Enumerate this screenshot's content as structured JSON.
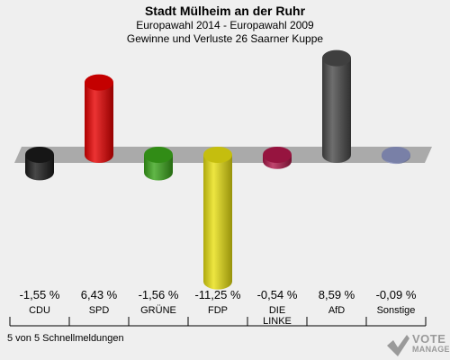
{
  "header": {
    "title": "Stadt Mülheim an der Ruhr",
    "subtitle1": "Europawahl 2014 - Europawahl 2009",
    "subtitle2": "Gewinne und Verluste 26 Saarner Kuppe"
  },
  "chart_data": {
    "type": "bar",
    "categories": [
      "CDU",
      "SPD",
      "GRÜNE",
      "FDP",
      "DIE LINKE",
      "AfD",
      "Sonstige"
    ],
    "category_lines": [
      [
        "CDU"
      ],
      [
        "SPD"
      ],
      [
        "GRÜNE"
      ],
      [
        "FDP"
      ],
      [
        "DIE",
        "LINKE"
      ],
      [
        "AfD"
      ],
      [
        "Sonstige"
      ]
    ],
    "values": [
      -1.55,
      6.43,
      -1.56,
      -11.25,
      -0.54,
      8.59,
      -0.09
    ],
    "value_labels": [
      "-1,55 %",
      "6,43 %",
      "-1,56 %",
      "-11,25 %",
      "-0,54 %",
      "8,59 %",
      "-0,09 %"
    ],
    "colors": [
      "#1a1a1a",
      "#e60000",
      "#3aa51a",
      "#e8e011",
      "#b0184a",
      "#4a4a4a",
      "#8e96c4"
    ],
    "ylim": [
      -12,
      10
    ]
  },
  "footer": {
    "note": "5 von 5 Schnellmeldungen"
  },
  "logo": {
    "line1": "VOTE",
    "line2": "MANAGER"
  }
}
